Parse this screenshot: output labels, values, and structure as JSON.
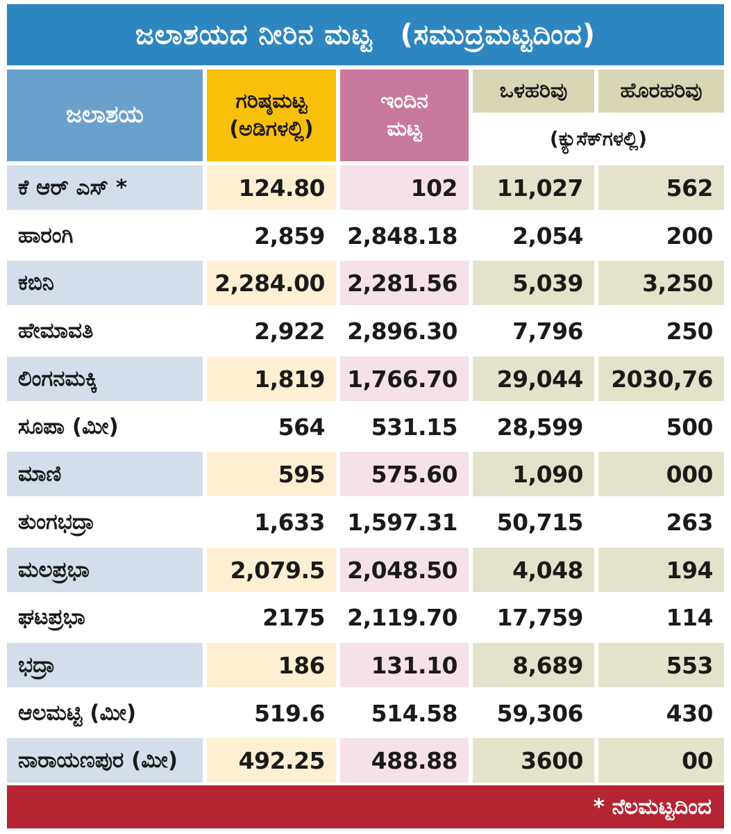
{
  "title": {
    "main": "ಜಲಾಶಯದ ನೀರಿನ ಮಟ್ಟ",
    "sub": "(ಸಮುದ್ರಮಟ್ಟದಿಂದ)"
  },
  "headers": {
    "reservoir": "ಜಲಾಶಯ",
    "max_level_line1": "ಗರಿಷ್ಠಮಟ್ಟ",
    "max_level_line2": "(ಅಡಿಗಳಲ್ಲಿ)",
    "today_line1": "ಇಂದಿನ",
    "today_line2": "ಮಟ್ಟ",
    "inflow": "ಒಳಹರಿವು",
    "outflow": "ಹೊರಹರಿವು",
    "flow_unit": "(ಕ್ಯುಸೆಕ್‌ಗಳಲ್ಲಿ)"
  },
  "rows": [
    {
      "name": "ಕೆ ಆರ್ ಎಸ್ *",
      "max": "124.80",
      "today": "102",
      "inflow": "11,027",
      "outflow": "562"
    },
    {
      "name": "ಹಾರಂಗಿ",
      "max": "2,859",
      "today": "2,848.18",
      "inflow": "2,054",
      "outflow": "200"
    },
    {
      "name": "ಕಬಿನಿ",
      "max": "2,284.00",
      "today": "2,281.56",
      "inflow": "5,039",
      "outflow": "3,250"
    },
    {
      "name": "ಹೇಮಾವತಿ",
      "max": "2,922",
      "today": "2,896.30",
      "inflow": "7,796",
      "outflow": "250"
    },
    {
      "name": "ಲಿಂಗನಮಕ್ಕಿ",
      "max": "1,819",
      "today": "1,766.70",
      "inflow": "29,044",
      "outflow": "2030,76"
    },
    {
      "name": "ಸೂಪಾ (ಮೀ)",
      "max": "564",
      "today": "531.15",
      "inflow": "28,599",
      "outflow": "500"
    },
    {
      "name": "ಮಾಣಿ",
      "max": "595",
      "today": "575.60",
      "inflow": "1,090",
      "outflow": "000"
    },
    {
      "name": "ತುಂಗಭದ್ರಾ",
      "max": "1,633",
      "today": "1,597.31",
      "inflow": "50,715",
      "outflow": "263"
    },
    {
      "name": "ಮಲಪ್ರಭಾ",
      "max": "2,079.5",
      "today": "2,048.50",
      "inflow": "4,048",
      "outflow": "194"
    },
    {
      "name": "ಘಟಪ್ರಭಾ",
      "max": "2175",
      "today": "2,119.70",
      "inflow": "17,759",
      "outflow": "114"
    },
    {
      "name": "ಭದ್ರಾ",
      "max": "186",
      "today": "131.10",
      "inflow": "8,689",
      "outflow": "553"
    },
    {
      "name": "ಆಲಮಟ್ಟಿ (ಮೀ)",
      "max": "519.6",
      "today": "514.58",
      "inflow": "59,306",
      "outflow": "430"
    },
    {
      "name": "ನಾರಾಯಣಪುರ (ಮೀ)",
      "max": "492.25",
      "today": "488.88",
      "inflow": "3600",
      "outflow": "00"
    }
  ],
  "footnote": "* ನೆಲಮಟ್ಟದಿಂದ",
  "colors": {
    "title_bg": "#2d86c0",
    "header_reservoir": "#6aa0cc",
    "header_max": "#f9c00b",
    "header_today": "#c9799d",
    "header_flow": "#d8d6b4",
    "row_name": "#d3deea",
    "row_max": "#fdf0d2",
    "row_today": "#f5e1ea",
    "row_flow": "#e4e2cb",
    "footer_bg": "#b52532"
  }
}
